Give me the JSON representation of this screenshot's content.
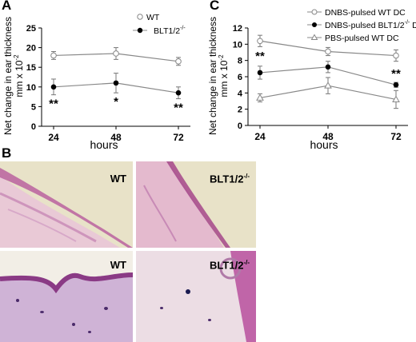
{
  "panels": {
    "a": "A",
    "b": "B",
    "c": "C"
  },
  "chart_data": [
    {
      "type": "line",
      "panel": "A",
      "x": [
        24,
        48,
        72
      ],
      "xlabel": "hours",
      "ylabel": "Net change in ear thickness",
      "ylabel2": "mm x 10",
      "ylabel2_sup": "-2",
      "ylim": [
        0,
        25
      ],
      "yticks": [
        0,
        5,
        10,
        15,
        20,
        25
      ],
      "series": [
        {
          "name": "WT",
          "name_sup": "",
          "marker": "open-circle",
          "values": [
            18.0,
            18.5,
            16.5
          ],
          "errors": [
            1.0,
            1.5,
            1.0
          ]
        },
        {
          "name": "BLT1/2",
          "name_sup": "-/-",
          "marker": "filled-circle",
          "values": [
            10.0,
            11.0,
            8.5
          ],
          "errors": [
            2.0,
            2.5,
            1.5
          ]
        }
      ],
      "annotations": [
        "**",
        "*",
        "**"
      ],
      "legend_position": "top-right"
    },
    {
      "type": "line",
      "panel": "C",
      "x": [
        24,
        48,
        72
      ],
      "xlabel": "hours",
      "ylabel": "Net change in ear thickness",
      "ylabel2": "mm x 10",
      "ylabel2_sup": "-2",
      "ylim": [
        0,
        12
      ],
      "yticks": [
        0,
        2,
        4,
        6,
        8,
        10,
        12
      ],
      "series": [
        {
          "name": "DNBS-pulsed WT DC",
          "name_sup": "",
          "marker": "open-circle",
          "values": [
            10.4,
            9.1,
            8.6
          ],
          "errors": [
            0.7,
            0.5,
            0.7
          ]
        },
        {
          "name": "DNBS-pulsed BLT1/2",
          "name_sup": "-/-",
          "name_tail": " DC",
          "marker": "filled-circle",
          "values": [
            6.5,
            7.2,
            5.0
          ],
          "errors": [
            0.8,
            0.7,
            0.3
          ]
        },
        {
          "name": "PBS-pulsed WT DC",
          "name_sup": "",
          "marker": "open-triangle",
          "values": [
            3.4,
            4.9,
            3.2
          ],
          "errors": [
            0.5,
            1.0,
            1.1
          ]
        }
      ],
      "annotations": [
        "**",
        "",
        "**"
      ],
      "legend_position": "top-right"
    }
  ],
  "histology": {
    "top_left": "WT",
    "top_right": "BLT1/2",
    "bottom_left": "WT",
    "bottom_right": "BLT1/2",
    "sup": "-/-"
  }
}
